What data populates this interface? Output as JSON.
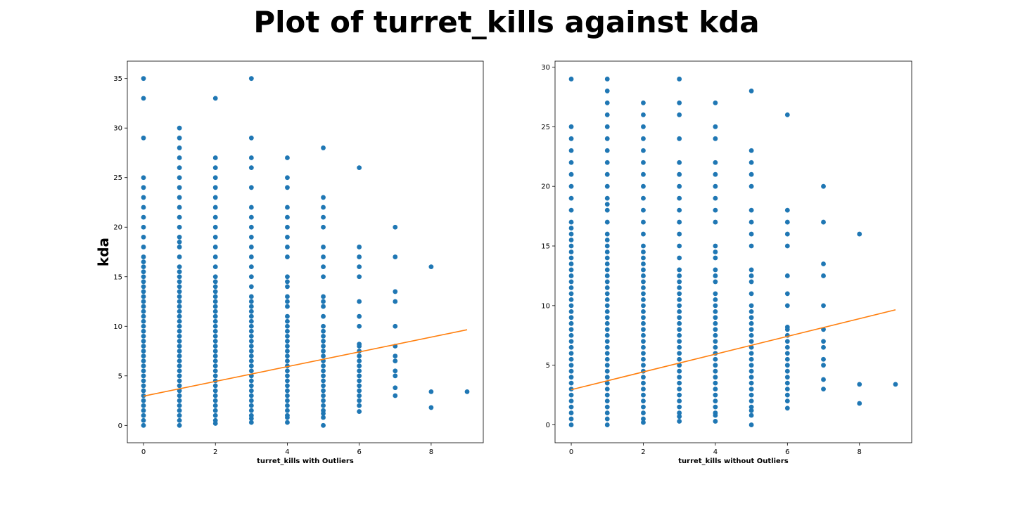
{
  "figure": {
    "suptitle": "Plot of turret_kills against kda"
  },
  "colors": {
    "points": "#1f77b4",
    "fit_line": "#ff7f0e",
    "axes": "#000000"
  },
  "chart_data": [
    {
      "type": "scatter",
      "title": "",
      "xlabel": "turret_kills with Outliers",
      "ylabel": "kda",
      "xlim": [
        -0.45,
        9.45
      ],
      "ylim": [
        -1.75,
        36.75
      ],
      "xticks": [
        0,
        2,
        4,
        6,
        8
      ],
      "yticks": [
        0,
        5,
        10,
        15,
        20,
        25,
        30,
        35
      ],
      "grid": false,
      "marker_size": 6,
      "series": [
        {
          "kind": "points",
          "points": [
            {
              "x": 0,
              "y": [
                0,
                0.5,
                1,
                1.5,
                2,
                2.5,
                3,
                3.5,
                4,
                4.5,
                5,
                5.5,
                6,
                6.5,
                7,
                7.5,
                8,
                8.5,
                9,
                9.5,
                10,
                10.5,
                11,
                11.5,
                12,
                12.5,
                13,
                13.5,
                14,
                14.5,
                15,
                15.5,
                16,
                16.5,
                17,
                18,
                19,
                20,
                21,
                22,
                23,
                24,
                25,
                29,
                33,
                35
              ]
            },
            {
              "x": 1,
              "y": [
                0,
                0.5,
                1,
                1.5,
                2,
                2.5,
                3,
                3.5,
                4,
                4.5,
                5,
                5.5,
                6,
                6.5,
                7,
                7.5,
                8,
                8.5,
                9,
                9.5,
                10,
                10.5,
                11,
                11.5,
                12,
                12.5,
                13,
                13.5,
                14,
                14.5,
                15,
                15.5,
                16,
                17,
                18,
                18.5,
                19,
                20,
                21,
                22,
                23,
                24,
                25,
                26,
                27,
                28,
                29,
                30
              ]
            },
            {
              "x": 2,
              "y": [
                0.2,
                0.5,
                1,
                1.5,
                2,
                2.5,
                3,
                3.5,
                4,
                4.5,
                5,
                5.5,
                6,
                6.5,
                7,
                7.5,
                8,
                8.5,
                9,
                9.5,
                10,
                10.5,
                11,
                11.5,
                12,
                12.5,
                13,
                13.5,
                14,
                14.5,
                15,
                16,
                17,
                18,
                19,
                20,
                21,
                22,
                23,
                24,
                25,
                26,
                27,
                33
              ]
            },
            {
              "x": 3,
              "y": [
                0.3,
                0.7,
                1,
                1.5,
                2,
                2.5,
                3,
                3.5,
                4,
                4.5,
                5,
                5.5,
                6,
                6.5,
                7,
                7.5,
                8,
                8.5,
                9,
                9.5,
                10,
                10.5,
                11,
                11.5,
                12,
                12.5,
                13,
                14,
                15,
                16,
                17,
                18,
                19,
                20,
                21,
                22,
                24,
                26,
                27,
                29,
                35
              ]
            },
            {
              "x": 4,
              "y": [
                0.3,
                0.8,
                1,
                1.5,
                2,
                2.5,
                3,
                3.5,
                4,
                4.5,
                5,
                5.5,
                6,
                6.5,
                7,
                7.5,
                8,
                8.5,
                9,
                9.5,
                10,
                10.5,
                11,
                12,
                12.5,
                13,
                14,
                14.5,
                15,
                17,
                18,
                19,
                20,
                21,
                22,
                24,
                25,
                27
              ]
            },
            {
              "x": 5,
              "y": [
                0,
                0.8,
                1.2,
                1.5,
                2,
                2.5,
                3,
                3.5,
                4,
                4.5,
                5,
                5.5,
                6,
                6.5,
                7,
                7.5,
                8,
                8.5,
                9,
                9.5,
                10,
                11,
                12,
                12.5,
                13,
                15,
                16,
                17,
                18,
                20,
                21,
                22,
                23,
                28
              ]
            },
            {
              "x": 6,
              "y": [
                1.4,
                2,
                2.5,
                3,
                3.5,
                4,
                4.5,
                5,
                5.5,
                6,
                6.5,
                7,
                7.5,
                8,
                8.2,
                10,
                11,
                12.5,
                15,
                16,
                17,
                18,
                26
              ]
            },
            {
              "x": 7,
              "y": [
                3,
                3.8,
                5,
                5.5,
                6.5,
                7,
                8,
                10,
                12.5,
                13.5,
                17,
                20
              ]
            },
            {
              "x": 8,
              "y": [
                1.8,
                3.4,
                16
              ]
            },
            {
              "x": 9,
              "y": [
                3.4
              ]
            }
          ]
        },
        {
          "kind": "fit_line",
          "x": [
            0,
            9
          ],
          "y": [
            2.95,
            9.65
          ]
        }
      ]
    },
    {
      "type": "scatter",
      "title": "",
      "xlabel": "turret_kills without Outliers",
      "ylabel": "",
      "xlim": [
        -0.45,
        9.45
      ],
      "ylim": [
        -1.5,
        30.5
      ],
      "xticks": [
        0,
        2,
        4,
        6,
        8
      ],
      "yticks": [
        0,
        5,
        10,
        15,
        20,
        25,
        30
      ],
      "grid": false,
      "marker_size": 6,
      "series": [
        {
          "kind": "points",
          "points": [
            {
              "x": 0,
              "y": [
                0,
                0.5,
                1,
                1.5,
                2,
                2.5,
                3,
                3.5,
                4,
                4.5,
                5,
                5.5,
                6,
                6.5,
                7,
                7.5,
                8,
                8.5,
                9,
                9.5,
                10,
                10.5,
                11,
                11.5,
                12,
                12.5,
                13,
                13.5,
                14,
                14.5,
                15,
                15.5,
                16,
                16.5,
                17,
                18,
                19,
                20,
                21,
                22,
                23,
                24,
                25,
                29
              ]
            },
            {
              "x": 1,
              "y": [
                0,
                0.5,
                1,
                1.5,
                2,
                2.5,
                3,
                3.5,
                4,
                4.5,
                5,
                5.5,
                6,
                6.5,
                7,
                7.5,
                8,
                8.5,
                9,
                9.5,
                10,
                10.5,
                11,
                11.5,
                12,
                12.5,
                13,
                13.5,
                14,
                14.5,
                15,
                15.5,
                16,
                17,
                18,
                18.5,
                19,
                20,
                21,
                22,
                23,
                24,
                25,
                26,
                27,
                28,
                29
              ]
            },
            {
              "x": 2,
              "y": [
                0.2,
                0.5,
                1,
                1.5,
                2,
                2.5,
                3,
                3.5,
                4,
                4.5,
                5,
                5.5,
                6,
                6.5,
                7,
                7.5,
                8,
                8.5,
                9,
                9.5,
                10,
                10.5,
                11,
                11.5,
                12,
                12.5,
                13,
                13.5,
                14,
                14.5,
                15,
                16,
                17,
                18,
                19,
                20,
                21,
                22,
                23,
                24,
                25,
                26,
                27
              ]
            },
            {
              "x": 3,
              "y": [
                0.3,
                0.7,
                1,
                1.5,
                2,
                2.5,
                3,
                3.5,
                4,
                4.5,
                5,
                5.5,
                6,
                6.5,
                7,
                7.5,
                8,
                8.5,
                9,
                9.5,
                10,
                10.5,
                11,
                11.5,
                12,
                12.5,
                13,
                14,
                15,
                16,
                17,
                18,
                19,
                20,
                21,
                22,
                24,
                26,
                27,
                29
              ]
            },
            {
              "x": 4,
              "y": [
                0.3,
                0.8,
                1,
                1.5,
                2,
                2.5,
                3,
                3.5,
                4,
                4.5,
                5,
                5.5,
                6,
                6.5,
                7,
                7.5,
                8,
                8.5,
                9,
                9.5,
                10,
                10.5,
                11,
                12,
                12.5,
                13,
                14,
                14.5,
                15,
                17,
                18,
                19,
                20,
                21,
                22,
                24,
                25,
                27
              ]
            },
            {
              "x": 5,
              "y": [
                0,
                0.8,
                1.2,
                1.5,
                2,
                2.5,
                3,
                3.5,
                4,
                4.5,
                5,
                5.5,
                6,
                6.5,
                7,
                7.5,
                8,
                8.5,
                9,
                9.5,
                10,
                11,
                12,
                12.5,
                13,
                15,
                16,
                17,
                18,
                20,
                21,
                22,
                23,
                28
              ]
            },
            {
              "x": 6,
              "y": [
                1.4,
                2,
                2.5,
                3,
                3.5,
                4,
                4.5,
                5,
                5.5,
                6,
                6.5,
                7,
                7.5,
                8,
                8.2,
                10,
                11,
                12.5,
                15,
                16,
                17,
                18,
                26
              ]
            },
            {
              "x": 7,
              "y": [
                3,
                3.8,
                5,
                5.5,
                6.5,
                7,
                8,
                10,
                12.5,
                13.5,
                17,
                20
              ]
            },
            {
              "x": 8,
              "y": [
                1.8,
                3.4,
                16
              ]
            },
            {
              "x": 9,
              "y": [
                3.4
              ]
            }
          ]
        },
        {
          "kind": "fit_line",
          "x": [
            0,
            9
          ],
          "y": [
            2.95,
            9.65
          ]
        }
      ]
    }
  ]
}
